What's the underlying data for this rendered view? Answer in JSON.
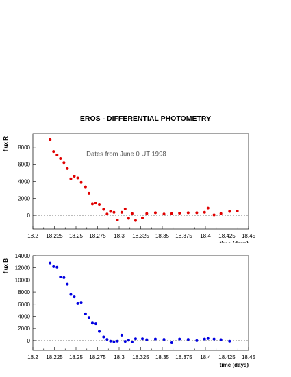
{
  "page": {
    "title": "EROS - DIFFERENTIAL PHOTOMETRY"
  },
  "chart_data": [
    {
      "type": "scatter",
      "ylabel": "flux R",
      "xlabel": "time (days)",
      "annotation": "Dates from June 0 UT 1998",
      "xlim": [
        18.2,
        18.45
      ],
      "ylim": [
        -1600,
        9600
      ],
      "x_ticks": [
        "18.2",
        "18.225",
        "18.25",
        "18.275",
        "18.3",
        "18.325",
        "18.35",
        "18.375",
        "18.4",
        "18.425",
        "18.45"
      ],
      "x_tick_values": [
        18.2,
        18.225,
        18.25,
        18.275,
        18.3,
        18.325,
        18.35,
        18.375,
        18.4,
        18.425,
        18.45
      ],
      "y_ticks": [
        "8000",
        "6000",
        "4000",
        "2000",
        "0"
      ],
      "y_tick_values": [
        8000,
        6000,
        4000,
        2000,
        0
      ],
      "zero_line": true,
      "series": [
        {
          "color": "#e00000",
          "points": [
            [
              18.22,
              8900
            ],
            [
              18.224,
              7500
            ],
            [
              18.228,
              7100
            ],
            [
              18.232,
              6700
            ],
            [
              18.236,
              6200
            ],
            [
              18.24,
              5500
            ],
            [
              18.244,
              4300
            ],
            [
              18.248,
              4600
            ],
            [
              18.252,
              4400
            ],
            [
              18.256,
              3900
            ],
            [
              18.261,
              3350
            ],
            [
              18.265,
              2600
            ],
            [
              18.269,
              1350
            ],
            [
              18.273,
              1450
            ],
            [
              18.277,
              1300
            ],
            [
              18.282,
              700
            ],
            [
              18.286,
              150
            ],
            [
              18.29,
              450
            ],
            [
              18.294,
              350
            ],
            [
              18.298,
              -550
            ],
            [
              18.303,
              350
            ],
            [
              18.307,
              750
            ],
            [
              18.311,
              -350
            ],
            [
              18.315,
              200
            ],
            [
              18.319,
              -600
            ],
            [
              18.327,
              -300
            ],
            [
              18.332,
              200
            ],
            [
              18.342,
              300
            ],
            [
              18.352,
              150
            ],
            [
              18.361,
              200
            ],
            [
              18.37,
              250
            ],
            [
              18.38,
              300
            ],
            [
              18.39,
              300
            ],
            [
              18.399,
              350
            ],
            [
              18.403,
              850
            ],
            [
              18.41,
              50
            ],
            [
              18.418,
              200
            ],
            [
              18.428,
              450
            ],
            [
              18.437,
              500
            ]
          ]
        }
      ]
    },
    {
      "type": "scatter",
      "ylabel": "flux B",
      "xlabel": "time (days)",
      "xlim": [
        18.2,
        18.45
      ],
      "ylim": [
        -1600,
        14000
      ],
      "x_ticks": [
        "18.2",
        "18.225",
        "18.25",
        "18.275",
        "18.3",
        "18.325",
        "18.35",
        "18.375",
        "18.4",
        "18.425",
        "18.45"
      ],
      "x_tick_values": [
        18.2,
        18.225,
        18.25,
        18.275,
        18.3,
        18.325,
        18.35,
        18.375,
        18.4,
        18.425,
        18.45
      ],
      "y_ticks": [
        "14000",
        "12000",
        "10000",
        "8000",
        "6000",
        "4000",
        "2000",
        "0"
      ],
      "y_tick_values": [
        14000,
        12000,
        10000,
        8000,
        6000,
        4000,
        2000,
        0
      ],
      "zero_line": true,
      "series": [
        {
          "color": "#0000e0",
          "points": [
            [
              18.22,
              12800
            ],
            [
              18.224,
              12200
            ],
            [
              18.228,
              12100
            ],
            [
              18.232,
              10500
            ],
            [
              18.236,
              10400
            ],
            [
              18.24,
              9300
            ],
            [
              18.244,
              7600
            ],
            [
              18.248,
              7200
            ],
            [
              18.252,
              6100
            ],
            [
              18.256,
              6300
            ],
            [
              18.261,
              4400
            ],
            [
              18.265,
              3800
            ],
            [
              18.269,
              2900
            ],
            [
              18.273,
              2800
            ],
            [
              18.277,
              1500
            ],
            [
              18.282,
              600
            ],
            [
              18.286,
              200
            ],
            [
              18.29,
              -100
            ],
            [
              18.294,
              -200
            ],
            [
              18.298,
              -100
            ],
            [
              18.303,
              900
            ],
            [
              18.307,
              -150
            ],
            [
              18.311,
              50
            ],
            [
              18.315,
              -250
            ],
            [
              18.319,
              300
            ],
            [
              18.327,
              300
            ],
            [
              18.332,
              150
            ],
            [
              18.342,
              250
            ],
            [
              18.352,
              200
            ],
            [
              18.361,
              -350
            ],
            [
              18.37,
              250
            ],
            [
              18.38,
              200
            ],
            [
              18.39,
              0
            ],
            [
              18.399,
              250
            ],
            [
              18.403,
              350
            ],
            [
              18.41,
              250
            ],
            [
              18.418,
              150
            ],
            [
              18.428,
              -100
            ]
          ]
        }
      ]
    }
  ]
}
